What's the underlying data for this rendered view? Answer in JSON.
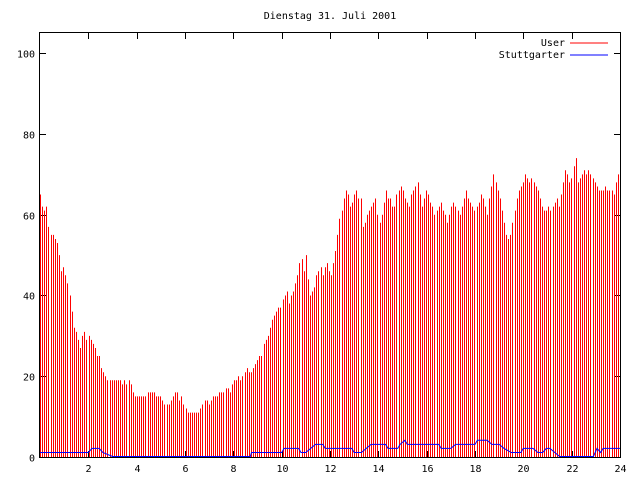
{
  "chart_data": {
    "type": "bar",
    "title": "Dienstag 31. Juli 2001",
    "xlabel": "",
    "ylabel": "",
    "xlim": [
      0,
      24
    ],
    "ylim": [
      0,
      105
    ],
    "x_ticks": [
      "2",
      "4",
      "6",
      "8",
      "10",
      "12",
      "14",
      "16",
      "18",
      "20",
      "22",
      "24"
    ],
    "y_ticks": [
      "0",
      "20",
      "40",
      "60",
      "80",
      "100"
    ],
    "legend_position": "top-right",
    "series": [
      {
        "name": "User",
        "style": "impulses",
        "color": "#ff0000",
        "values": [
          65,
          62,
          61,
          62,
          57,
          55,
          55,
          54,
          53,
          50,
          46,
          47,
          45,
          43,
          40,
          36,
          32,
          31,
          29,
          27,
          30,
          31,
          29,
          30,
          29,
          28,
          27,
          25,
          25,
          22,
          21,
          20,
          19,
          19,
          19,
          19,
          19,
          19,
          19,
          18,
          19,
          18,
          19,
          18,
          16,
          15,
          15,
          15,
          15,
          15,
          15,
          16,
          16,
          16,
          16,
          15,
          15,
          15,
          14,
          13,
          13,
          13,
          14,
          15,
          16,
          16,
          14,
          15,
          13,
          12,
          11,
          11,
          11,
          11,
          11,
          11,
          12,
          13,
          14,
          14,
          13,
          14,
          15,
          15,
          15,
          16,
          16,
          16,
          17,
          17,
          16,
          18,
          19,
          19,
          20,
          19,
          20,
          21,
          22,
          21,
          21,
          22,
          23,
          24,
          25,
          25,
          28,
          29,
          30,
          32,
          34,
          35,
          36,
          37,
          37,
          39,
          40,
          41,
          38,
          40,
          41,
          43,
          45,
          48,
          49,
          46,
          50,
          44,
          40,
          41,
          42,
          45,
          46,
          47,
          45,
          47,
          48,
          46,
          45,
          48,
          51,
          55,
          59,
          61,
          64,
          66,
          65,
          62,
          63,
          65,
          66,
          64,
          64,
          57,
          58,
          60,
          61,
          62,
          63,
          64,
          60,
          58,
          60,
          63,
          66,
          64,
          64,
          62,
          62,
          65,
          66,
          67,
          66,
          64,
          63,
          62,
          65,
          66,
          67,
          68,
          65,
          62,
          64,
          66,
          65,
          63,
          62,
          60,
          61,
          62,
          63,
          61,
          60,
          58,
          60,
          62,
          63,
          62,
          61,
          60,
          62,
          64,
          66,
          64,
          63,
          62,
          61,
          62,
          63,
          65,
          64,
          62,
          60,
          64,
          67,
          70,
          68,
          66,
          64,
          61,
          58,
          55,
          54,
          55,
          58,
          61,
          64,
          66,
          67,
          68,
          70,
          69,
          68,
          69,
          68,
          67,
          66,
          64,
          62,
          61,
          61,
          62,
          61,
          62,
          63,
          64,
          62,
          65,
          68,
          71,
          70,
          68,
          69,
          72,
          74,
          68,
          69,
          70,
          71,
          70,
          71,
          70,
          69,
          68,
          67,
          66,
          66,
          66,
          67,
          66,
          66,
          66,
          65,
          68,
          70,
          73
        ]
      },
      {
        "name": "Stuttgarter",
        "style": "lines",
        "color": "#0000ff",
        "points": [
          [
            0.0,
            1
          ],
          [
            2.0,
            1
          ],
          [
            2.15,
            2
          ],
          [
            2.45,
            2
          ],
          [
            2.6,
            1
          ],
          [
            3.0,
            0
          ],
          [
            8.7,
            0
          ],
          [
            8.75,
            1
          ],
          [
            10.0,
            1
          ],
          [
            10.1,
            2
          ],
          [
            10.7,
            2
          ],
          [
            10.8,
            1
          ],
          [
            11.0,
            1
          ],
          [
            11.2,
            2
          ],
          [
            11.4,
            3
          ],
          [
            11.7,
            3
          ],
          [
            11.8,
            2
          ],
          [
            12.9,
            2
          ],
          [
            13.0,
            1
          ],
          [
            13.3,
            1
          ],
          [
            13.5,
            2
          ],
          [
            13.7,
            3
          ],
          [
            14.3,
            3
          ],
          [
            14.4,
            2
          ],
          [
            14.8,
            2
          ],
          [
            14.9,
            3
          ],
          [
            15.1,
            4
          ],
          [
            15.2,
            3
          ],
          [
            16.5,
            3
          ],
          [
            16.6,
            2
          ],
          [
            17.0,
            2
          ],
          [
            17.2,
            3
          ],
          [
            17.4,
            3
          ],
          [
            17.6,
            3
          ],
          [
            18.0,
            3
          ],
          [
            18.1,
            4
          ],
          [
            18.5,
            4
          ],
          [
            18.7,
            3
          ],
          [
            19.0,
            3
          ],
          [
            19.2,
            2
          ],
          [
            19.5,
            1
          ],
          [
            19.9,
            1
          ],
          [
            20.0,
            2
          ],
          [
            20.4,
            2
          ],
          [
            20.6,
            1
          ],
          [
            20.8,
            1
          ],
          [
            20.95,
            2
          ],
          [
            21.1,
            2
          ],
          [
            21.3,
            1
          ],
          [
            21.5,
            0
          ],
          [
            22.9,
            0
          ],
          [
            23.05,
            2
          ],
          [
            23.2,
            1
          ],
          [
            23.3,
            2
          ],
          [
            24.0,
            2
          ]
        ]
      }
    ]
  }
}
